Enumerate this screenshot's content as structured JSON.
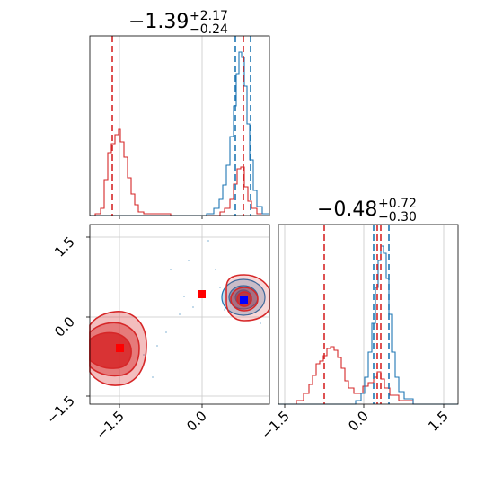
{
  "colors": {
    "blue": "#1f77b4",
    "red": "#d62728",
    "grid": "#c8c8c8"
  },
  "titles": {
    "param_1": {
      "median": "−1.39",
      "plus": "+2.17",
      "minus": "−0.24"
    },
    "param_2": {
      "median": "−0.48",
      "plus": "+0.72",
      "minus": "−0.30"
    }
  },
  "chart_data": {
    "type": "corner",
    "axis_range": [
      -1.5,
      0.9
    ],
    "ticks": [
      -1.5,
      0.0,
      1.5
    ],
    "tick_labels": [
      "−1.5",
      "0.0",
      "1.5"
    ],
    "grid": true,
    "markers": {
      "red_squares": [
        [
          -1.1,
          -0.45
        ],
        [
          0.0,
          0.45
        ]
      ],
      "blue_square": [
        0.55,
        0.35
      ]
    },
    "marginal_1": {
      "blue_quantile_lines": [
        0.43,
        0.55,
        0.64
      ],
      "red_quantile_lines": [
        -1.2,
        0.55
      ],
      "blue_hist_peak": 0.45,
      "red_hist_peaks": [
        -1.1,
        0.55
      ]
    },
    "marginal_2": {
      "blue_quantile_lines": [
        0.05,
        0.18,
        0.31
      ],
      "red_quantile_lines": [
        -0.68,
        0.14,
        0.2
      ],
      "blue_hist_peak": 0.2,
      "red_hist_peaks": [
        -0.45,
        0.15
      ]
    }
  }
}
